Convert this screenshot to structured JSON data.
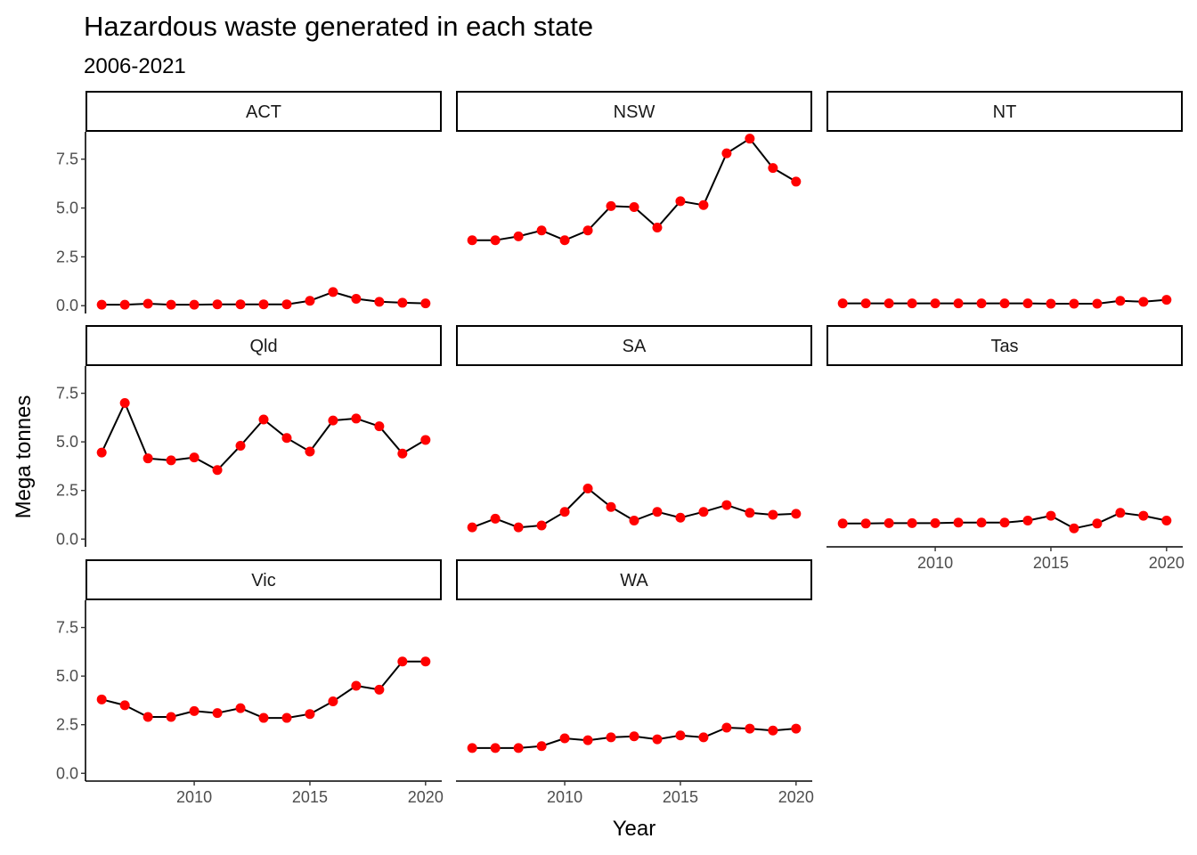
{
  "chart_data": {
    "type": "line",
    "title": "Hazardous waste generated in each state",
    "subtitle": "2006-2021",
    "xlabel": "Year",
    "ylabel": "Mega tonnes",
    "xlim": [
      2005.3,
      2020.7
    ],
    "ylim": [
      -0.4,
      8.9
    ],
    "x_ticks": [
      2010,
      2015,
      2020
    ],
    "y_ticks": [
      0.0,
      2.5,
      5.0,
      7.5
    ],
    "y_tick_labels": [
      "0.0",
      "2.5",
      "5.0",
      "7.5"
    ],
    "grid": false,
    "legend": "none",
    "line_color": "#000000",
    "point_color": "#ff0000",
    "x": [
      2006,
      2007,
      2008,
      2009,
      2010,
      2011,
      2012,
      2013,
      2014,
      2015,
      2016,
      2017,
      2018,
      2019,
      2020
    ],
    "facets": [
      {
        "name": "ACT",
        "values": [
          0.05,
          0.05,
          0.1,
          0.05,
          0.05,
          0.07,
          0.07,
          0.07,
          0.07,
          0.25,
          0.7,
          0.35,
          0.2,
          0.15,
          0.12
        ]
      },
      {
        "name": "NSW",
        "values": [
          3.35,
          3.35,
          3.55,
          3.85,
          3.35,
          3.85,
          5.1,
          5.05,
          4.0,
          5.35,
          5.15,
          7.8,
          8.55,
          7.05,
          6.35
        ]
      },
      {
        "name": "NT",
        "values": [
          0.12,
          0.12,
          0.12,
          0.12,
          0.12,
          0.12,
          0.12,
          0.12,
          0.12,
          0.1,
          0.1,
          0.1,
          0.25,
          0.2,
          0.3
        ]
      },
      {
        "name": "Qld",
        "values": [
          4.45,
          7.0,
          4.15,
          4.05,
          4.2,
          3.55,
          4.8,
          6.15,
          5.2,
          4.5,
          6.1,
          6.2,
          5.8,
          4.4,
          5.1
        ]
      },
      {
        "name": "SA",
        "values": [
          0.6,
          1.05,
          0.6,
          0.7,
          1.4,
          2.6,
          1.65,
          0.95,
          1.4,
          1.1,
          1.4,
          1.75,
          1.35,
          1.25,
          1.3
        ]
      },
      {
        "name": "Tas",
        "values": [
          0.8,
          0.8,
          0.82,
          0.82,
          0.82,
          0.85,
          0.85,
          0.85,
          0.95,
          1.2,
          0.55,
          0.8,
          1.35,
          1.2,
          0.95
        ]
      },
      {
        "name": "Vic",
        "values": [
          3.8,
          3.5,
          2.9,
          2.9,
          3.2,
          3.1,
          3.35,
          2.85,
          2.85,
          3.05,
          3.7,
          4.5,
          4.3,
          5.75,
          5.75
        ]
      },
      {
        "name": "WA",
        "values": [
          1.3,
          1.3,
          1.3,
          1.4,
          1.8,
          1.7,
          1.85,
          1.9,
          1.75,
          1.95,
          1.85,
          2.35,
          2.3,
          2.2,
          2.3
        ]
      }
    ]
  }
}
